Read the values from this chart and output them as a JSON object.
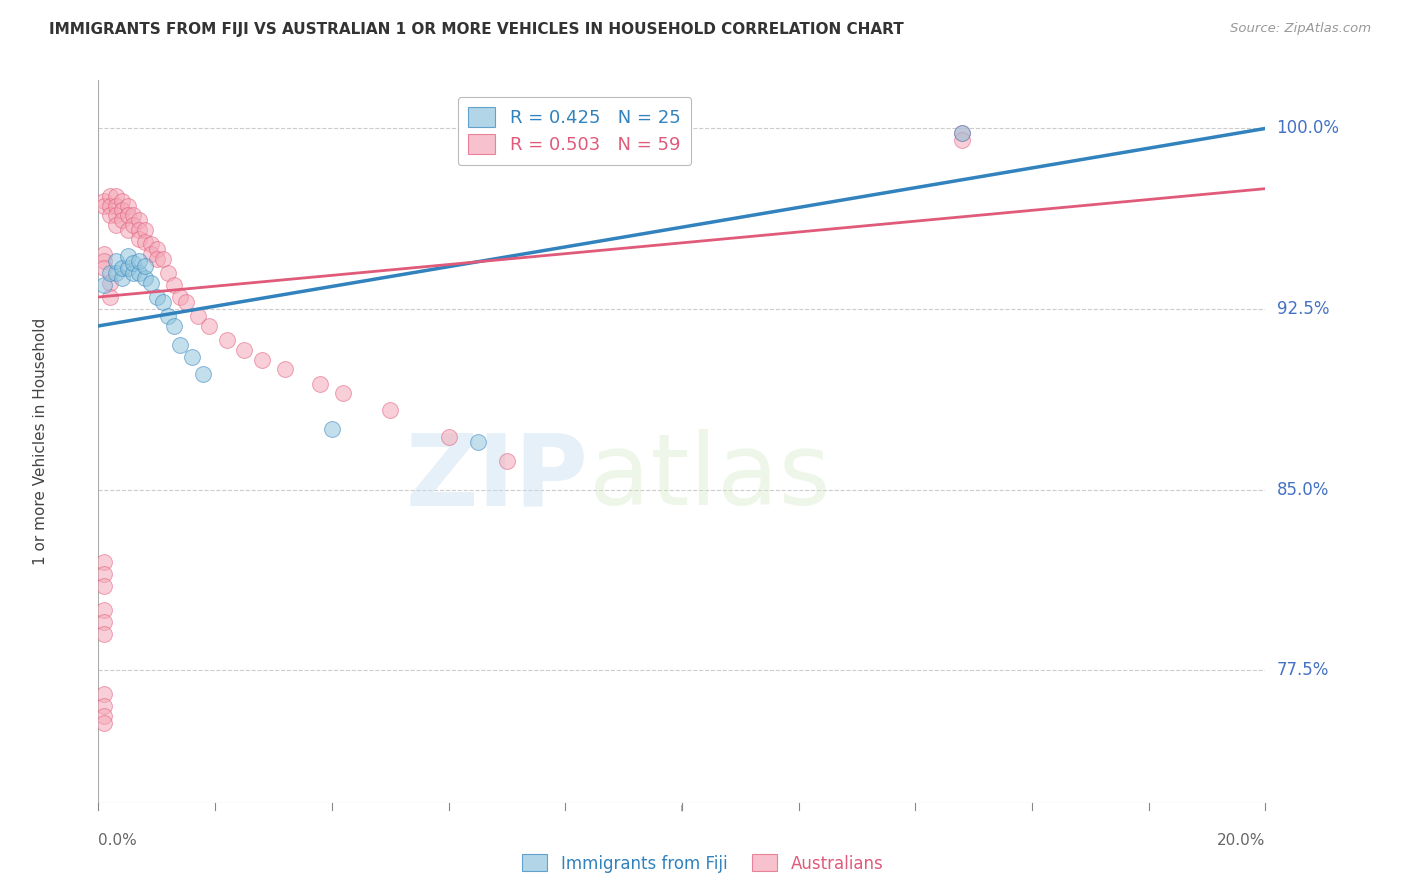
{
  "title": "IMMIGRANTS FROM FIJI VS AUSTRALIAN 1 OR MORE VEHICLES IN HOUSEHOLD CORRELATION CHART",
  "source": "Source: ZipAtlas.com",
  "ylabel": "1 or more Vehicles in Household",
  "ytick_labels": [
    "100.0%",
    "92.5%",
    "85.0%",
    "77.5%"
  ],
  "ytick_values": [
    1.0,
    0.925,
    0.85,
    0.775
  ],
  "xmin": 0.0,
  "xmax": 0.2,
  "ymin": 0.72,
  "ymax": 1.02,
  "legend_blue_R": "R = 0.425",
  "legend_blue_N": "N = 25",
  "legend_pink_R": "R = 0.503",
  "legend_pink_N": "N = 59",
  "legend_label_blue": "Immigrants from Fiji",
  "legend_label_pink": "Australians",
  "watermark_zip": "ZIP",
  "watermark_atlas": "atlas",
  "blue_color": "#92c5de",
  "pink_color": "#f4a9b8",
  "blue_line_color": "#3182bd",
  "pink_line_color": "#e05a7a",
  "axis_color": "#888888",
  "grid_color": "#cccccc",
  "ytick_color": "#4472C4",
  "title_color": "#333333",
  "source_color": "#999999",
  "blue_scatter_x": [
    0.001,
    0.002,
    0.003,
    0.003,
    0.004,
    0.004,
    0.005,
    0.005,
    0.006,
    0.006,
    0.007,
    0.007,
    0.008,
    0.008,
    0.009,
    0.01,
    0.011,
    0.012,
    0.013,
    0.014,
    0.016,
    0.018,
    0.04,
    0.065,
    0.148
  ],
  "blue_scatter_y": [
    0.935,
    0.94,
    0.94,
    0.945,
    0.938,
    0.942,
    0.942,
    0.947,
    0.94,
    0.944,
    0.94,
    0.945,
    0.938,
    0.943,
    0.936,
    0.93,
    0.928,
    0.922,
    0.918,
    0.91,
    0.905,
    0.898,
    0.875,
    0.87,
    0.998
  ],
  "pink_scatter_x": [
    0.001,
    0.001,
    0.002,
    0.002,
    0.002,
    0.003,
    0.003,
    0.003,
    0.003,
    0.004,
    0.004,
    0.004,
    0.005,
    0.005,
    0.005,
    0.006,
    0.006,
    0.007,
    0.007,
    0.007,
    0.008,
    0.008,
    0.009,
    0.009,
    0.01,
    0.01,
    0.011,
    0.012,
    0.013,
    0.014,
    0.015,
    0.017,
    0.019,
    0.022,
    0.025,
    0.028,
    0.032,
    0.038,
    0.042,
    0.05,
    0.06,
    0.07,
    0.001,
    0.001,
    0.001,
    0.002,
    0.002,
    0.001,
    0.001,
    0.001,
    0.001,
    0.001,
    0.001,
    0.001,
    0.001,
    0.001,
    0.001,
    0.148,
    0.148
  ],
  "pink_scatter_y": [
    0.97,
    0.968,
    0.972,
    0.968,
    0.964,
    0.972,
    0.968,
    0.964,
    0.96,
    0.97,
    0.966,
    0.962,
    0.968,
    0.964,
    0.958,
    0.964,
    0.96,
    0.962,
    0.958,
    0.954,
    0.958,
    0.953,
    0.952,
    0.948,
    0.95,
    0.946,
    0.946,
    0.94,
    0.935,
    0.93,
    0.928,
    0.922,
    0.918,
    0.912,
    0.908,
    0.904,
    0.9,
    0.894,
    0.89,
    0.883,
    0.872,
    0.862,
    0.948,
    0.945,
    0.942,
    0.936,
    0.93,
    0.8,
    0.795,
    0.79,
    0.82,
    0.815,
    0.81,
    0.765,
    0.76,
    0.756,
    0.753,
    0.998,
    0.995
  ],
  "blue_trend_x": [
    0.0,
    0.2
  ],
  "blue_trend_y": [
    0.918,
    1.0
  ],
  "pink_trend_x": [
    0.0,
    0.2
  ],
  "pink_trend_y": [
    0.93,
    0.975
  ]
}
